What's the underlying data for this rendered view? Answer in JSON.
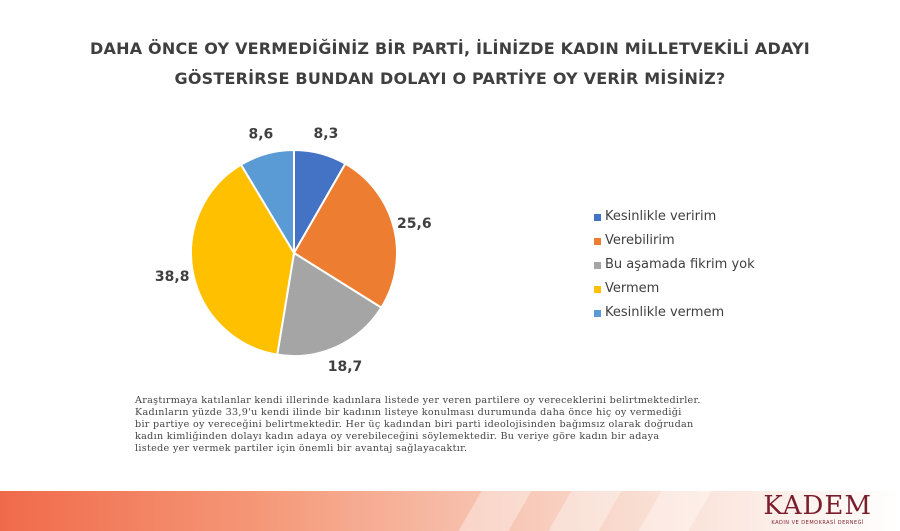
{
  "title_lines": [
    "DAHA ÖNCE OY VERMEDİĞİNİZ BİR PARTİ, İLİNİZDE KADIN MİLLETVEKİLİ ADAYI",
    "GÖSTERİRSE BUNDAN DOLAYI O PARTİYE OY VERİR MİSİNİZ?"
  ],
  "chart_data": {
    "type": "pie",
    "title": "DAHA ÖNCE OY VERMEDİĞİNİZ BİR PARTİ, İLİNİZDE KADIN MİLLETVEKİLİ ADAYI GÖSTERİRSE BUNDAN DOLAYI O PARTİYE OY VERİR MİSİNİZ?",
    "categories": [
      "Kesinlikle veririm",
      "Verebilirim",
      "Bu aşamada fikrim yok",
      "Vermem",
      "Kesinlikle vermem"
    ],
    "values": [
      8.3,
      25.6,
      18.7,
      38.8,
      8.6
    ],
    "value_labels": [
      "8,3",
      "25,6",
      "18,7",
      "38,8",
      "8,6"
    ],
    "colors": [
      "#4472c4",
      "#ed7d31",
      "#a5a5a5",
      "#ffc000",
      "#5b9bd5"
    ],
    "start_angle": "12 o'clock",
    "direction": "clockwise",
    "legend_position": "right"
  },
  "note_lines": [
    "Araştırmaya katılanlar kendi illerinde kadınlara listede yer veren partilere oy vereceklerini belirtmektedirler.",
    "Kadınların yüzde 33,9'u kendi ilinde bir kadının listeye konulması durumunda daha önce hiç oy vermediği",
    "bir partiye oy vereceğini belirtmektedir. Her üç kadından biri parti ideolojisinden bağımsız olarak doğrudan",
    "kadın kimliğinden dolayı kadın adaya oy verebileceğini söylemektedir.  Bu veriye göre kadın bir adaya",
    "listede yer vermek partiler için önemli bir avantaj sağlayacaktır."
  ],
  "logo": {
    "main": "KADEM",
    "sub": "KADIN VE DEMOKRASİ DERNEĞİ"
  }
}
